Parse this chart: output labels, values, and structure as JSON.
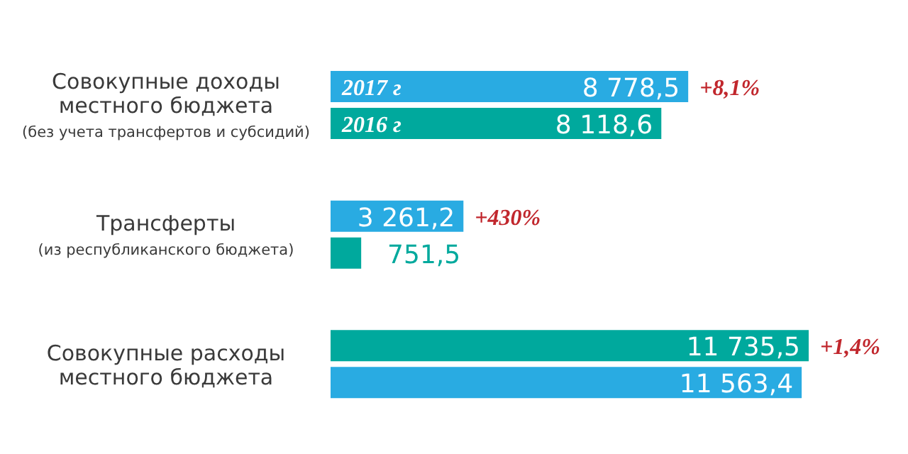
{
  "chart_data": {
    "type": "bar",
    "orientation": "horizontal",
    "categories": [
      "Совокупные доходы\nместного бюджета\n(без учета трансфертов и субсидий)",
      "Трансферты\n(из республиканского бюджета)",
      "Совокупные расходы\nместного бюджета"
    ],
    "series": [
      {
        "name": "2017 г",
        "colors": [
          "#29abe2",
          "#29abe2",
          "#00a99d"
        ],
        "values": [
          8778.5,
          3261.2,
          11735.5
        ],
        "value_labels": [
          "8 778,5",
          "3 261,2",
          "11 735,5"
        ]
      },
      {
        "name": "2016 г",
        "colors": [
          "#00a99d",
          "#00a99d",
          "#29abe2"
        ],
        "values": [
          8118.6,
          751.5,
          11563.4
        ],
        "value_labels": [
          "8 118,6",
          "751,5",
          "11 563,4"
        ]
      }
    ],
    "annotations": [
      "+8,1%",
      "+430%",
      "+1,4%"
    ]
  }
}
